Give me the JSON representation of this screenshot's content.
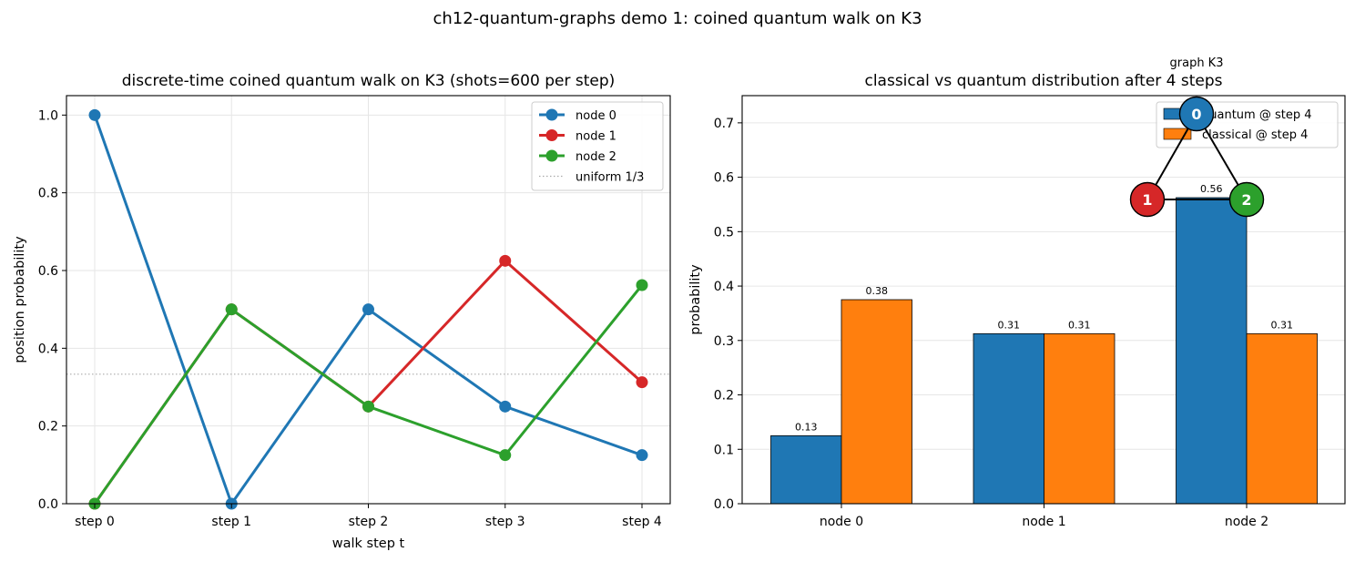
{
  "figure": {
    "suptitle": "ch12-quantum-graphs demo 1: coined quantum walk on K3"
  },
  "chart_data": [
    {
      "type": "line",
      "title": "discrete-time coined quantum walk on K3 (shots=600 per step)",
      "xlabel": "walk step t",
      "ylabel": "position probability",
      "categories": [
        "step 0",
        "step 1",
        "step 2",
        "step 3",
        "step 4"
      ],
      "ylim": [
        0,
        1.05
      ],
      "yticks": [
        0.0,
        0.2,
        0.4,
        0.6,
        0.8,
        1.0
      ],
      "ytick_labels": [
        "0.0",
        "0.2",
        "0.4",
        "0.6",
        "0.8",
        "1.0"
      ],
      "grid": true,
      "legend_position": "top-right",
      "series": [
        {
          "name": "node 0",
          "color": "#1f77b4",
          "values": [
            1.0,
            0.0,
            0.5,
            0.25,
            0.125
          ]
        },
        {
          "name": "node 1",
          "color": "#d62728",
          "values": [
            0.0,
            0.5,
            0.25,
            0.625,
            0.3125
          ]
        },
        {
          "name": "node 2",
          "color": "#2ca02c",
          "values": [
            0.0,
            0.5,
            0.25,
            0.125,
            0.5625
          ]
        }
      ],
      "reference_line": {
        "name": "uniform 1/3",
        "value": 0.3333,
        "color": "#aaaaaa",
        "style": "dotted"
      }
    },
    {
      "type": "bar",
      "title": "classical vs quantum distribution after 4 steps",
      "xlabel": "",
      "ylabel": "probability",
      "categories": [
        "node 0",
        "node 1",
        "node 2"
      ],
      "ylim": [
        0,
        0.75
      ],
      "yticks": [
        0.0,
        0.1,
        0.2,
        0.3,
        0.4,
        0.5,
        0.6,
        0.7
      ],
      "ytick_labels": [
        "0.0",
        "0.1",
        "0.2",
        "0.3",
        "0.4",
        "0.5",
        "0.6",
        "0.7"
      ],
      "grid": true,
      "legend_position": "top-right",
      "series": [
        {
          "name": "quantum @ step 4",
          "color": "#1f77b4",
          "values": [
            0.125,
            0.3125,
            0.5625
          ],
          "labels": [
            "0.13",
            "0.31",
            "0.56"
          ]
        },
        {
          "name": "classical @ step 4",
          "color": "#ff7f0e",
          "values": [
            0.375,
            0.3125,
            0.3125
          ],
          "labels": [
            "0.38",
            "0.31",
            "0.31"
          ]
        }
      ]
    }
  ],
  "graph_inset": {
    "title": "graph K3",
    "nodes": [
      {
        "label": "0",
        "color": "#1f77b4"
      },
      {
        "label": "1",
        "color": "#d62728"
      },
      {
        "label": "2",
        "color": "#2ca02c"
      }
    ]
  }
}
